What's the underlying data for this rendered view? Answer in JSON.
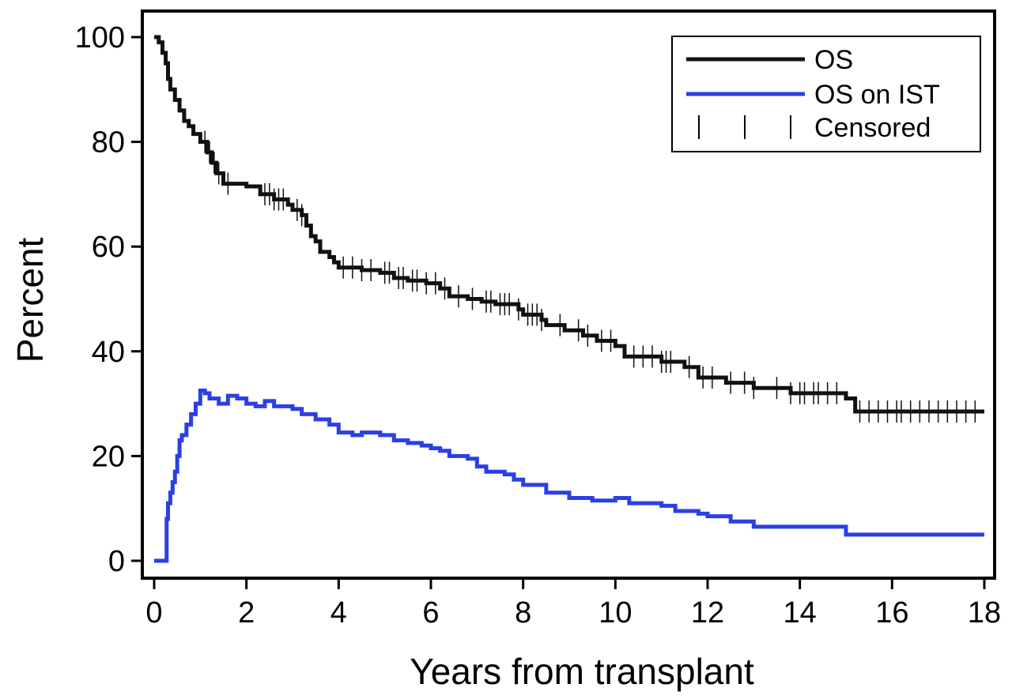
{
  "chart_data": {
    "type": "line",
    "title": "",
    "xlabel": "Years from transplant",
    "ylabel": "Percent",
    "xlim": [
      0,
      18
    ],
    "ylim": [
      0,
      100
    ],
    "x_ticks": [
      0,
      2,
      4,
      6,
      8,
      10,
      12,
      14,
      16,
      18
    ],
    "y_ticks": [
      0,
      20,
      40,
      60,
      80,
      100
    ],
    "x_tick_labels": [
      "0",
      "2",
      "4",
      "6",
      "8",
      "10",
      "12",
      "14",
      "16",
      "18"
    ],
    "y_tick_labels": [
      "0",
      "20",
      "40",
      "60",
      "80",
      "100"
    ],
    "grid": false,
    "legend_position": "top-right",
    "legend": {
      "os": "OS",
      "ist": "OS on IST",
      "censored": "Censored"
    },
    "series": [
      {
        "name": "OS",
        "color": "#111111",
        "step": true,
        "points": [
          [
            0,
            100
          ],
          [
            0.1,
            99
          ],
          [
            0.18,
            97
          ],
          [
            0.25,
            95
          ],
          [
            0.3,
            92
          ],
          [
            0.35,
            90
          ],
          [
            0.45,
            88
          ],
          [
            0.55,
            86
          ],
          [
            0.65,
            84
          ],
          [
            0.75,
            83
          ],
          [
            0.85,
            81.5
          ],
          [
            1.0,
            80
          ],
          [
            1.15,
            78
          ],
          [
            1.25,
            76
          ],
          [
            1.35,
            74
          ],
          [
            1.5,
            72
          ],
          [
            2.0,
            71.5
          ],
          [
            2.3,
            70
          ],
          [
            2.6,
            69
          ],
          [
            2.9,
            68
          ],
          [
            3.0,
            67
          ],
          [
            3.2,
            66
          ],
          [
            3.3,
            64
          ],
          [
            3.4,
            62
          ],
          [
            3.5,
            61
          ],
          [
            3.6,
            59
          ],
          [
            3.8,
            58
          ],
          [
            3.9,
            57
          ],
          [
            4.0,
            56
          ],
          [
            4.5,
            55.5
          ],
          [
            4.9,
            55
          ],
          [
            5.2,
            54
          ],
          [
            5.5,
            53.5
          ],
          [
            5.9,
            53
          ],
          [
            6.2,
            52
          ],
          [
            6.4,
            50.5
          ],
          [
            6.8,
            50
          ],
          [
            7.1,
            49.5
          ],
          [
            7.4,
            49
          ],
          [
            7.9,
            48
          ],
          [
            8.0,
            47
          ],
          [
            8.4,
            46
          ],
          [
            8.5,
            45
          ],
          [
            8.9,
            44
          ],
          [
            9.3,
            43
          ],
          [
            9.6,
            42
          ],
          [
            10.0,
            41
          ],
          [
            10.2,
            39
          ],
          [
            11.0,
            38
          ],
          [
            11.5,
            37
          ],
          [
            11.8,
            35
          ],
          [
            12.4,
            34
          ],
          [
            13.0,
            33
          ],
          [
            13.8,
            32
          ],
          [
            15.0,
            31
          ],
          [
            15.2,
            28.5
          ],
          [
            18.0,
            28.5
          ]
        ],
        "censored_x": [
          1.1,
          1.2,
          1.3,
          1.4,
          1.6,
          2.4,
          2.5,
          2.6,
          2.7,
          2.8,
          3.1,
          3.2,
          4.1,
          4.3,
          4.5,
          4.7,
          5.0,
          5.1,
          5.3,
          5.4,
          5.6,
          5.7,
          5.9,
          6.1,
          6.3,
          6.6,
          6.9,
          7.2,
          7.3,
          7.5,
          7.6,
          7.7,
          7.9,
          8.1,
          8.2,
          8.3,
          8.4,
          8.8,
          9.2,
          9.4,
          9.7,
          9.9,
          10.4,
          10.6,
          10.8,
          11.0,
          11.1,
          11.2,
          11.6,
          11.9,
          12.1,
          12.5,
          12.8,
          13.0,
          13.5,
          13.8,
          14.0,
          14.1,
          14.3,
          14.4,
          14.6,
          14.8,
          15.3,
          15.5,
          15.7,
          15.9,
          16.1,
          16.2,
          16.4,
          16.6,
          16.8,
          17.0,
          17.2,
          17.4,
          17.6,
          17.8
        ]
      },
      {
        "name": "OS on IST",
        "color": "#2b3fe6",
        "step": true,
        "points": [
          [
            0,
            0
          ],
          [
            0.25,
            0
          ],
          [
            0.27,
            8
          ],
          [
            0.3,
            11
          ],
          [
            0.35,
            13
          ],
          [
            0.4,
            15
          ],
          [
            0.45,
            17
          ],
          [
            0.5,
            20
          ],
          [
            0.55,
            23
          ],
          [
            0.6,
            24
          ],
          [
            0.7,
            26
          ],
          [
            0.8,
            28
          ],
          [
            0.9,
            30
          ],
          [
            1.0,
            32.5
          ],
          [
            1.1,
            32
          ],
          [
            1.2,
            31
          ],
          [
            1.4,
            30
          ],
          [
            1.6,
            31.5
          ],
          [
            1.8,
            31
          ],
          [
            2.0,
            30
          ],
          [
            2.2,
            29.5
          ],
          [
            2.4,
            30.5
          ],
          [
            2.6,
            29.5
          ],
          [
            2.8,
            29.5
          ],
          [
            3.0,
            29
          ],
          [
            3.2,
            28
          ],
          [
            3.5,
            27
          ],
          [
            3.8,
            26
          ],
          [
            4.0,
            24.5
          ],
          [
            4.3,
            24
          ],
          [
            4.5,
            24.5
          ],
          [
            4.9,
            24
          ],
          [
            5.2,
            23
          ],
          [
            5.5,
            22.5
          ],
          [
            5.8,
            22
          ],
          [
            6.0,
            21.5
          ],
          [
            6.2,
            21
          ],
          [
            6.4,
            20
          ],
          [
            6.8,
            19.5
          ],
          [
            7.0,
            18
          ],
          [
            7.2,
            17
          ],
          [
            7.6,
            16.5
          ],
          [
            7.8,
            15.5
          ],
          [
            8.0,
            14.5
          ],
          [
            8.5,
            13
          ],
          [
            9.0,
            12
          ],
          [
            9.5,
            11.5
          ],
          [
            10.0,
            12
          ],
          [
            10.3,
            11
          ],
          [
            11.0,
            10.5
          ],
          [
            11.3,
            9.5
          ],
          [
            11.8,
            9
          ],
          [
            12.0,
            8.5
          ],
          [
            12.5,
            7.5
          ],
          [
            13.0,
            6.5
          ],
          [
            13.6,
            6.5
          ],
          [
            14.0,
            6.5
          ],
          [
            14.9,
            6.5
          ],
          [
            15.0,
            5
          ],
          [
            18.0,
            5
          ]
        ]
      }
    ]
  }
}
